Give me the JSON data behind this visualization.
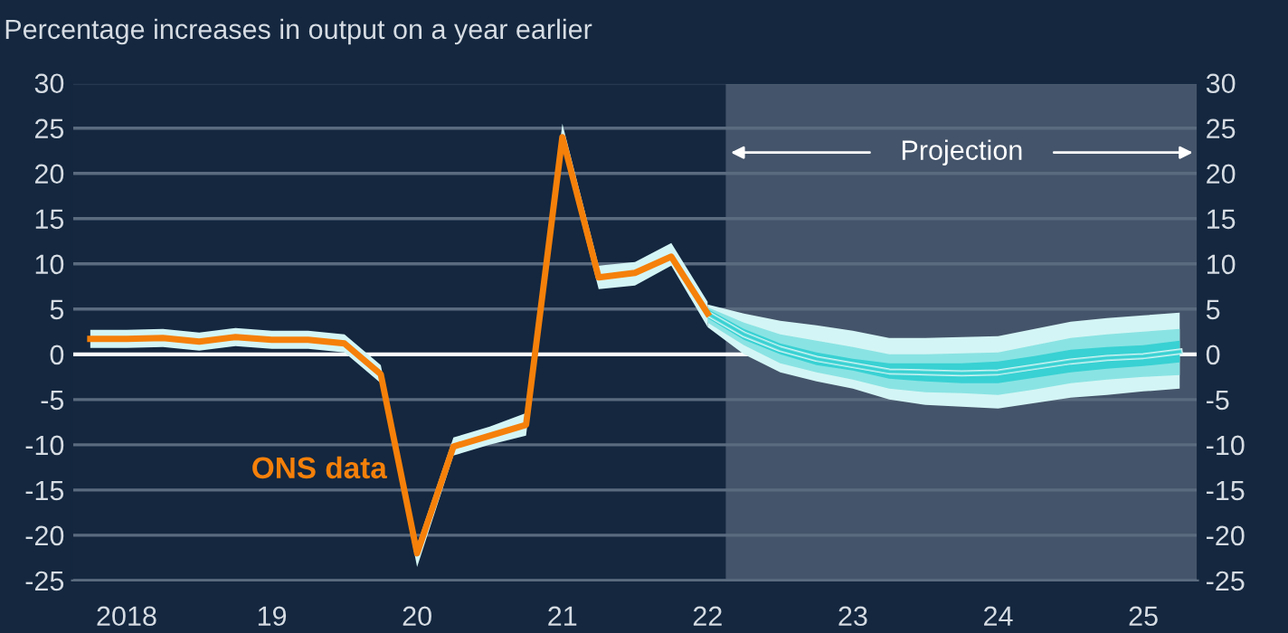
{
  "chart_data": {
    "type": "line",
    "title": "Percentage increases in output on a year earlier",
    "categories": [
      null,
      "2018",
      null,
      null,
      null,
      "19",
      null,
      null,
      null,
      "20",
      null,
      null,
      null,
      "21",
      null,
      null,
      null,
      "22",
      null,
      null,
      null,
      "23",
      null,
      null,
      null,
      "24",
      null,
      null,
      null,
      "25",
      null
    ],
    "ylim": [
      -25,
      30
    ],
    "yticks": [
      -25,
      -20,
      -15,
      -10,
      -5,
      0,
      5,
      10,
      15,
      20,
      25,
      30
    ],
    "y2lim": [
      -25,
      30
    ],
    "y2ticks": [
      -25,
      -20,
      -15,
      -10,
      -5,
      0,
      5,
      10,
      15,
      20,
      25,
      30
    ],
    "grid": "y",
    "ref_lines": [
      {
        "axis": "y",
        "value": 0,
        "color": "#ffffff"
      }
    ],
    "annotations": [
      "Projection"
    ],
    "series": [
      {
        "color": "#d4f5f5",
        "values": [
          null,
          null,
          null,
          null,
          null,
          null,
          null,
          null,
          null,
          null,
          null,
          null,
          null,
          null,
          null,
          null,
          null,
          4.5,
          2.2,
          0.6,
          -0.5,
          -1.2,
          -1.9,
          -2.0,
          -2.1,
          -2.0,
          -1.4,
          -0.8,
          -0.4,
          -0.2,
          0.3
        ],
        "lower": [
          null,
          null,
          null,
          null,
          null,
          null,
          null,
          null,
          null,
          null,
          null,
          null,
          null,
          null,
          null,
          null,
          null,
          3.0,
          0,
          -2.0,
          -3.0,
          -3.8,
          -5.0,
          -5.6,
          -5.8,
          -6.0,
          -5.4,
          -4.8,
          -4.5,
          -4.1,
          -3.8
        ],
        "upper": [
          null,
          null,
          null,
          null,
          null,
          null,
          null,
          null,
          null,
          null,
          null,
          null,
          null,
          null,
          null,
          null,
          null,
          5.5,
          4.5,
          3.7,
          3.2,
          2.6,
          1.8,
          1.8,
          1.9,
          2.0,
          2.8,
          3.6,
          4.0,
          4.3,
          4.6
        ]
      },
      {
        "color": "#8ae3e3",
        "values": [
          null,
          null,
          null,
          null,
          null,
          null,
          null,
          null,
          null,
          null,
          null,
          null,
          null,
          null,
          null,
          null,
          null,
          4.5,
          2.2,
          0.6,
          -0.5,
          -1.2,
          -1.9,
          -2.0,
          -2.1,
          -2.0,
          -1.4,
          -0.8,
          -0.4,
          -0.2,
          0.3
        ],
        "lower": [
          null,
          null,
          null,
          null,
          null,
          null,
          null,
          null,
          null,
          null,
          null,
          null,
          null,
          null,
          null,
          null,
          null,
          3.5,
          1.0,
          -1.0,
          -2.0,
          -2.8,
          -3.8,
          -4.2,
          -4.3,
          -4.5,
          -3.9,
          -3.2,
          -2.8,
          -2.5,
          -2.3
        ],
        "upper": [
          null,
          null,
          null,
          null,
          null,
          null,
          null,
          null,
          null,
          null,
          null,
          null,
          null,
          null,
          null,
          null,
          null,
          5.2,
          3.5,
          2.2,
          1.5,
          0.8,
          0.0,
          0.0,
          0.1,
          0.2,
          1.0,
          1.8,
          2.2,
          2.5,
          2.8
        ]
      },
      {
        "color": "#39d1d3",
        "values": [
          null,
          null,
          null,
          null,
          null,
          null,
          null,
          null,
          null,
          null,
          null,
          null,
          null,
          null,
          null,
          null,
          null,
          4.5,
          2.2,
          0.6,
          -0.5,
          -1.2,
          -1.9,
          -2.0,
          -2.1,
          -2.0,
          -1.4,
          -0.8,
          -0.4,
          -0.2,
          0.3
        ],
        "lower": [
          null,
          null,
          null,
          null,
          null,
          null,
          null,
          null,
          null,
          null,
          null,
          null,
          null,
          null,
          null,
          null,
          null,
          4.0,
          1.6,
          0.0,
          -1.2,
          -1.8,
          -2.7,
          -3.0,
          -3.2,
          -3.2,
          -2.6,
          -2.0,
          -1.6,
          -1.3,
          -0.9
        ],
        "upper": [
          null,
          null,
          null,
          null,
          null,
          null,
          null,
          null,
          null,
          null,
          null,
          null,
          null,
          null,
          null,
          null,
          null,
          5.0,
          2.8,
          1.2,
          0.2,
          -0.5,
          -1.0,
          -1.0,
          -1.0,
          -0.8,
          -0.2,
          0.5,
          0.8,
          1.0,
          1.5
        ]
      },
      {
        "name": "ONS data",
        "color": "#f5800a",
        "values": [
          1.7,
          1.7,
          1.8,
          1.4,
          1.9,
          1.6,
          1.6,
          1.2,
          -2.2,
          -22,
          -10.2,
          -9,
          -7.8,
          24,
          8.5,
          9,
          10.8,
          4.5,
          null,
          null,
          null,
          null,
          null,
          null,
          null,
          null,
          null,
          null,
          null,
          null,
          null
        ],
        "lower": [
          0.7,
          0.7,
          0.8,
          0.4,
          0.9,
          0.6,
          0.6,
          0.2,
          -3.2,
          -23.5,
          -11.2,
          -10,
          -9,
          23,
          7.2,
          7.6,
          9.8,
          3,
          null,
          null,
          null,
          null,
          null,
          null,
          null,
          null,
          null,
          null,
          null,
          null,
          null
        ],
        "upper": [
          2.7,
          2.7,
          2.8,
          2.4,
          2.9,
          2.6,
          2.6,
          2.2,
          -1.2,
          -21,
          -9.2,
          -8,
          -6.5,
          25.5,
          9.8,
          10.2,
          12.3,
          5.8,
          null,
          null,
          null,
          null,
          null,
          null,
          null,
          null,
          null,
          null,
          null,
          null,
          null
        ]
      }
    ]
  }
}
